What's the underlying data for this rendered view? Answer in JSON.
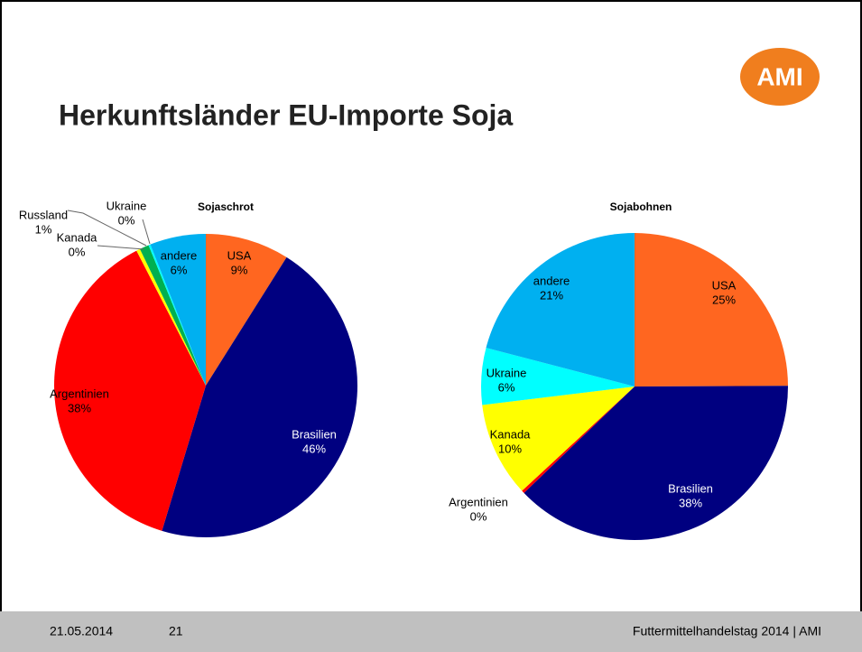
{
  "header": {
    "title": "Herkunftsländer EU-Importe Soja",
    "logo": "AMI"
  },
  "footer": {
    "date": "21.05.2014",
    "page": "21",
    "text": "Futtermittelhandelstag 2014 | AMI"
  },
  "chart_data": [
    {
      "type": "pie",
      "title": "Sojaschrot",
      "categories": [
        "USA",
        "Brasilien",
        "Argentinien",
        "Kanada",
        "Russland",
        "Ukraine",
        "andere"
      ],
      "values": [
        9,
        46,
        38,
        0.4,
        1,
        0.2,
        6
      ],
      "value_labels": [
        "9%",
        "46%",
        "38%",
        "0%",
        "1%",
        "0%",
        "6%"
      ],
      "colors": [
        "#ff6620",
        "#000080",
        "#ff0000",
        "#ffff00",
        "#00b050",
        "#00ffff",
        "#00b0f0"
      ]
    },
    {
      "type": "pie",
      "title": "Sojabohnen",
      "categories": [
        "USA",
        "Brasilien",
        "Argentinien",
        "Kanada",
        "Ukraine",
        "andere"
      ],
      "values": [
        25,
        38,
        0.3,
        10,
        6,
        21
      ],
      "value_labels": [
        "25%",
        "38%",
        "0%",
        "10%",
        "6%",
        "21%"
      ],
      "colors": [
        "#ff6620",
        "#000080",
        "#ff0000",
        "#ffff00",
        "#00ffff",
        "#00b0f0"
      ]
    }
  ]
}
